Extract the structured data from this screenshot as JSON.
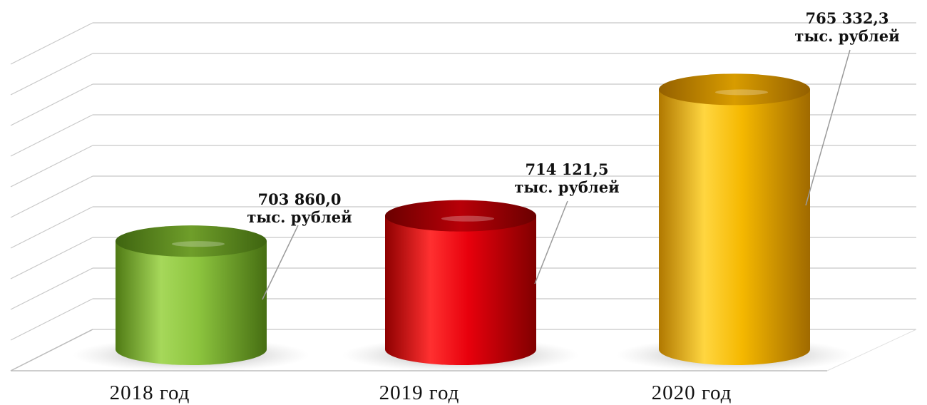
{
  "chart_data": {
    "type": "bar",
    "style": "3d-cylinder",
    "categories": [
      "2018 год",
      "2019 год",
      "2020 год"
    ],
    "values": [
      703860.0,
      714121.5,
      765332.3
    ],
    "value_labels": [
      "703 860,0",
      "714 121,5",
      "765 332,3"
    ],
    "unit_label": "тыс. рублей",
    "colors": [
      "#8cc43e",
      "#e8000c",
      "#f5b800"
    ],
    "title": "",
    "xlabel": "",
    "ylabel": "",
    "grid": true,
    "legend": "none"
  }
}
